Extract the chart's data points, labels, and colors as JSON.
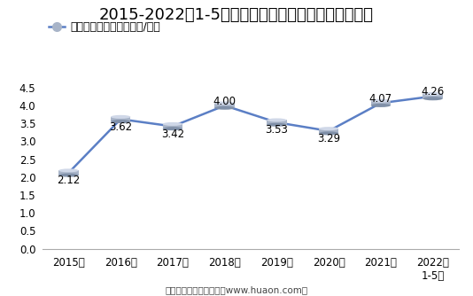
{
  "title": "2015-2022年1-5月郑州商品交易所锰硅期货成交均价",
  "legend_label": "锰硅期货成交均价（万元/手）",
  "x_labels": [
    "2015年",
    "2016年",
    "2017年",
    "2018年",
    "2019年",
    "2020年",
    "2021年",
    "2022年\n1-5月"
  ],
  "y_values": [
    2.12,
    3.62,
    3.42,
    4.0,
    3.53,
    3.29,
    4.07,
    4.26
  ],
  "ylim": [
    0,
    4.8
  ],
  "yticks": [
    0,
    0.5,
    1,
    1.5,
    2,
    2.5,
    3,
    3.5,
    4,
    4.5
  ],
  "line_color": "#5B7FC5",
  "bg_color": "#FFFFFF",
  "footer": "制图：华经产业研究院（www.huaon.com）",
  "title_fontsize": 13,
  "legend_fontsize": 9,
  "label_fontsize": 8.5,
  "tick_fontsize": 8.5,
  "footer_fontsize": 7.5,
  "data_label_offsets": [
    -0.22,
    -0.22,
    -0.22,
    0.12,
    -0.22,
    -0.22,
    0.12,
    0.12
  ]
}
